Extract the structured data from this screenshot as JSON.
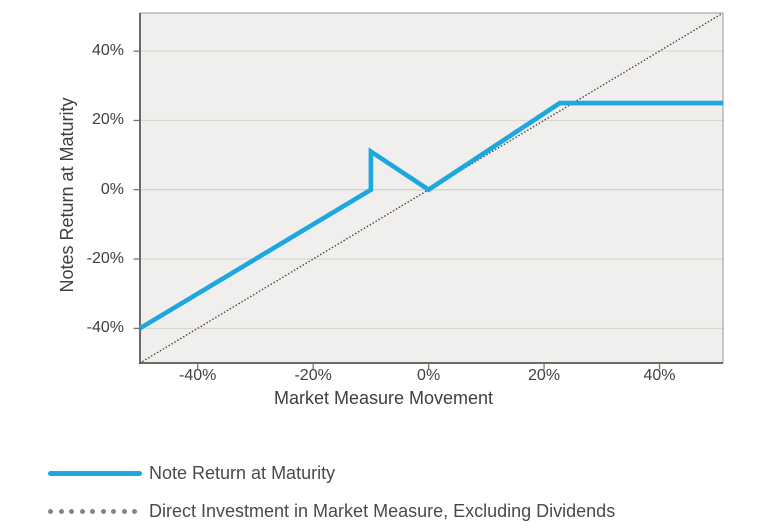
{
  "figure": {
    "y_axis_title": "Notes Return at Maturity",
    "x_axis_title": "Market Measure Movement"
  },
  "chart_data": {
    "type": "line",
    "title": "",
    "xlabel": "Market Measure Movement",
    "ylabel": "Notes Return at Maturity",
    "xlim": [
      -50,
      51
    ],
    "ylim": [
      -50,
      51
    ],
    "grid": "horizontal-only",
    "legend_position": "below-left",
    "x_ticks": [
      {
        "value": -40,
        "label": "-40%"
      },
      {
        "value": -20,
        "label": "-20%"
      },
      {
        "value": 0,
        "label": "0%"
      },
      {
        "value": 20,
        "label": "20%"
      },
      {
        "value": 40,
        "label": "40%"
      }
    ],
    "y_ticks": [
      {
        "value": -40,
        "label": "-40%"
      },
      {
        "value": -20,
        "label": "-20%"
      },
      {
        "value": 0,
        "label": "0%"
      },
      {
        "value": 20,
        "label": "20%"
      },
      {
        "value": 40,
        "label": "40%"
      }
    ],
    "series": [
      {
        "name": "Note Return at Maturity",
        "element_name": "note-return-line",
        "style": "solid",
        "color": "#1da7e0",
        "stroke_width": 4.6,
        "points": [
          [
            -50,
            -40
          ],
          [
            -10,
            0
          ],
          [
            -10,
            11
          ],
          [
            0,
            0
          ],
          [
            22.73,
            25
          ],
          [
            51,
            25
          ]
        ]
      },
      {
        "name": "Direct Investment in Market Measure, Excluding Dividends",
        "element_name": "direct-investment-line",
        "style": "dotted",
        "color": "#46423c",
        "stroke_width": 1.5,
        "points": [
          [
            -50,
            -50
          ],
          [
            51,
            51
          ]
        ]
      }
    ]
  },
  "legend": {
    "items": [
      {
        "label": "Note Return at Maturity",
        "swatch": "solid-line",
        "color": "#1da7e0"
      },
      {
        "label": "Direct Investment in Market Measure, Excluding Dividends",
        "swatch": "dotted-line",
        "color": "#8e8579",
        "dot_count": 9
      }
    ]
  },
  "colors": {
    "background": "#ffffff",
    "plot_background": "#f0efee",
    "gridline": "#d7d4ce",
    "zero_gridline": "#cdc9c3",
    "plot_border": "#aaa7a3",
    "axis_line": "#6e6a66",
    "tick_mark": "#6e6a66",
    "tick_text": "#3f3f3f",
    "legend_text": "#4a4a4a"
  }
}
